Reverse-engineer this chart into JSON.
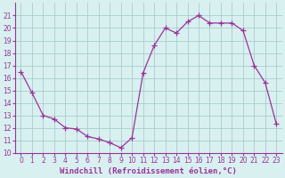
{
  "hours": [
    0,
    1,
    2,
    3,
    4,
    5,
    6,
    7,
    8,
    9,
    10,
    11,
    12,
    13,
    14,
    15,
    16,
    17,
    18,
    19,
    20,
    21,
    22,
    23
  ],
  "values": [
    16.5,
    14.8,
    13.0,
    12.7,
    12.0,
    11.9,
    11.3,
    11.1,
    10.8,
    10.4,
    11.2,
    16.4,
    18.6,
    20.0,
    19.6,
    20.5,
    21.0,
    20.4,
    20.4,
    20.4,
    19.8,
    17.0,
    15.6,
    12.3
  ],
  "line_color": "#993399",
  "marker": "+",
  "marker_size": 4,
  "bg_color": "#d8f0f0",
  "grid_color": "#aacccc",
  "xlabel": "Windchill (Refroidissement éolien,°C)",
  "xlabel_color": "#993399",
  "ylim": [
    10,
    22
  ],
  "xlim": [
    -0.5,
    23.5
  ],
  "yticks": [
    10,
    11,
    12,
    13,
    14,
    15,
    16,
    17,
    18,
    19,
    20,
    21
  ],
  "xticks": [
    0,
    1,
    2,
    3,
    4,
    5,
    6,
    7,
    8,
    9,
    10,
    11,
    12,
    13,
    14,
    15,
    16,
    17,
    18,
    19,
    20,
    21,
    22,
    23
  ],
  "tick_fontsize": 5.5,
  "xlabel_fontsize": 6.5,
  "spine_color": "#993399"
}
